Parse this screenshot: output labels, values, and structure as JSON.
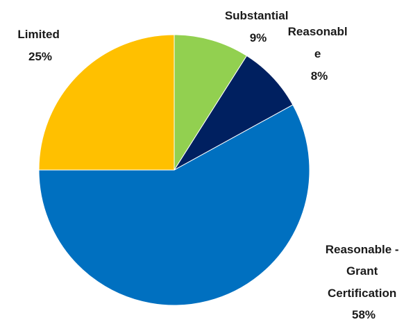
{
  "chart_data": {
    "type": "pie",
    "slices": [
      {
        "label_lines": [
          "Substantial"
        ],
        "value": 9,
        "value_label": "9%",
        "color": "#92D050"
      },
      {
        "label_lines": [
          "Reasonabl",
          "e"
        ],
        "value": 8,
        "value_label": "8%",
        "color": "#002060"
      },
      {
        "label_lines": [
          "Reasonable -",
          "Grant",
          "Certification"
        ],
        "value": 58,
        "value_label": "58%",
        "color": "#0070C0"
      },
      {
        "label_lines": [
          "Limited"
        ],
        "value": 25,
        "value_label": "25%",
        "color": "#FFC000"
      }
    ],
    "start_angle": "12 o'clock",
    "direction": "clockwise",
    "legend": "none",
    "data_labels": "outside"
  }
}
